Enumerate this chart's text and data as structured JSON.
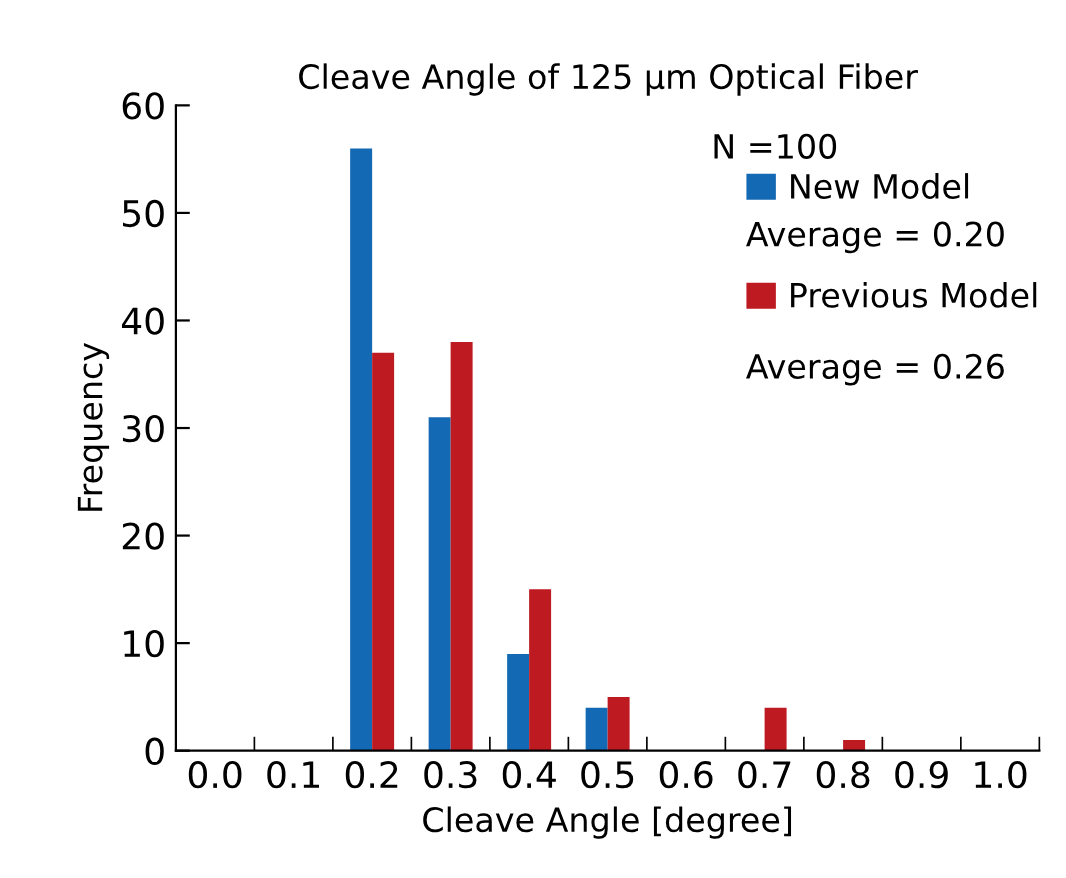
{
  "chart_data": {
    "type": "bar",
    "title": "Cleave Angle of 125 µm Optical Fiber",
    "xlabel": "Cleave Angle [degree]",
    "ylabel": "Frequency",
    "categories": [
      "0.0",
      "0.1",
      "0.2",
      "0.3",
      "0.4",
      "0.5",
      "0.6",
      "0.7",
      "0.8",
      "0.9",
      "1.0"
    ],
    "series": [
      {
        "name": "New Model",
        "color": "#1469b4",
        "values": [
          0,
          0,
          56,
          31,
          9,
          4,
          0,
          0,
          0,
          0,
          0
        ]
      },
      {
        "name": "Previous Model",
        "color": "#be1a22",
        "values": [
          0,
          0,
          37,
          38,
          15,
          5,
          0,
          4,
          1,
          0,
          0
        ]
      }
    ],
    "annotations": [
      "N =100",
      "Average = 0.20",
      "Average = 0.26"
    ],
    "ylim": [
      0,
      60
    ],
    "yticks": [
      0,
      10,
      20,
      30,
      40,
      50,
      60
    ],
    "grid": false,
    "legend": "top right"
  }
}
